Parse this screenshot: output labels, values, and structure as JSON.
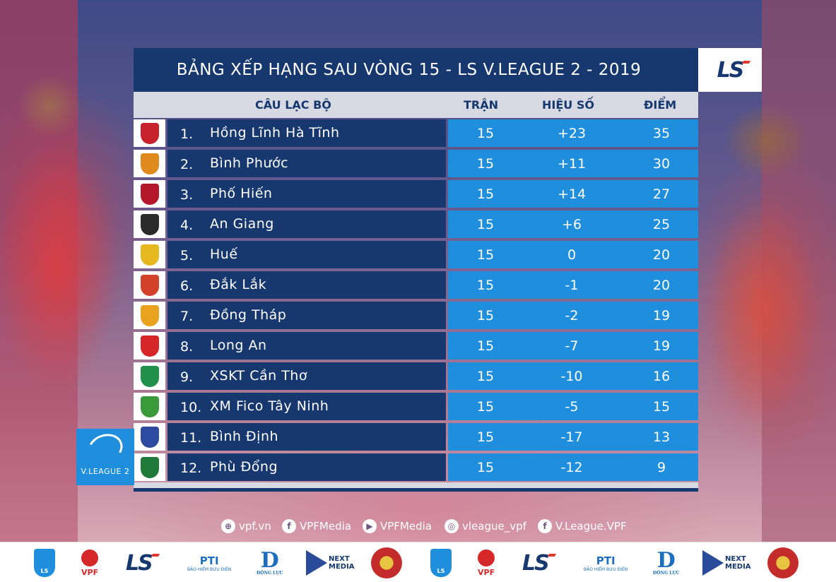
{
  "title": "BẢNG XẾP HẠNG SAU VÒNG 15 - LS V.LEAGUE 2 - 2019",
  "brand_logo_text": "LS",
  "headers": {
    "club": "CÂU LẠC BỘ",
    "played": "TRẬN",
    "goal_diff": "HIỆU SỐ",
    "points": "ĐIỂM"
  },
  "rows": [
    {
      "rank": "1.",
      "club": "Hồng Lĩnh Hà Tĩnh",
      "played": "15",
      "gd": "+23",
      "pts": "35",
      "badge_color": "#c8232c"
    },
    {
      "rank": "2.",
      "club": "Bình Phước",
      "played": "15",
      "gd": "+11",
      "pts": "30",
      "badge_color": "#e08a1e"
    },
    {
      "rank": "3.",
      "club": "Phố Hiến",
      "played": "15",
      "gd": "+14",
      "pts": "27",
      "badge_color": "#b5172a"
    },
    {
      "rank": "4.",
      "club": "An Giang",
      "played": "15",
      "gd": "+6",
      "pts": "25",
      "badge_color": "#2a2a2a"
    },
    {
      "rank": "5.",
      "club": "Huế",
      "played": "15",
      "gd": "0",
      "pts": "20",
      "badge_color": "#e6b820"
    },
    {
      "rank": "6.",
      "club": "Đắk Lắk",
      "played": "15",
      "gd": "-1",
      "pts": "20",
      "badge_color": "#d4412a"
    },
    {
      "rank": "7.",
      "club": "Đồng Tháp",
      "played": "15",
      "gd": "-2",
      "pts": "19",
      "badge_color": "#e8a21e"
    },
    {
      "rank": "8.",
      "club": "Long An",
      "played": "15",
      "gd": "-7",
      "pts": "19",
      "badge_color": "#d42626"
    },
    {
      "rank": "9.",
      "club": "XSKT Cần Thơ",
      "played": "15",
      "gd": "-10",
      "pts": "16",
      "badge_color": "#1f8f4a"
    },
    {
      "rank": "10.",
      "club": "XM Fico Tây Ninh",
      "played": "15",
      "gd": "-5",
      "pts": "15",
      "badge_color": "#3a9a3a"
    },
    {
      "rank": "11.",
      "club": "Bình Định",
      "played": "15",
      "gd": "-17",
      "pts": "13",
      "badge_color": "#2c4aa0"
    },
    {
      "rank": "12.",
      "club": "Phù Đổng",
      "played": "15",
      "gd": "-12",
      "pts": "9",
      "badge_color": "#1f7a3a"
    }
  ],
  "vleague_logo_text": "V.LEAGUE 2",
  "social": [
    {
      "icon": "globe-icon",
      "glyph": "⊕",
      "label": "vpf.vn"
    },
    {
      "icon": "facebook-icon",
      "glyph": "f",
      "label": "VPFMedia"
    },
    {
      "icon": "youtube-icon",
      "glyph": "▶",
      "label": "VPFMedia"
    },
    {
      "icon": "instagram-icon",
      "glyph": "◎",
      "label": "vleague_vpf"
    },
    {
      "icon": "facebook-icon",
      "glyph": "f",
      "label": "V.League.VPF"
    }
  ],
  "sponsors": {
    "vleague_label": "LS",
    "vpf_label": "VPF",
    "ls_label": "LS",
    "pti_label": "PTI",
    "pti_sub": "BẢO HIỂM BƯU ĐIỆN",
    "dl_label": "D",
    "dl_sub": "ĐỘNG LỰC",
    "next_label_1": "NEXT",
    "next_label_2": "MEDIA"
  },
  "colors": {
    "navy": "#17376f",
    "blue": "#1f8fdd",
    "header_bg": "#d7dae2"
  }
}
